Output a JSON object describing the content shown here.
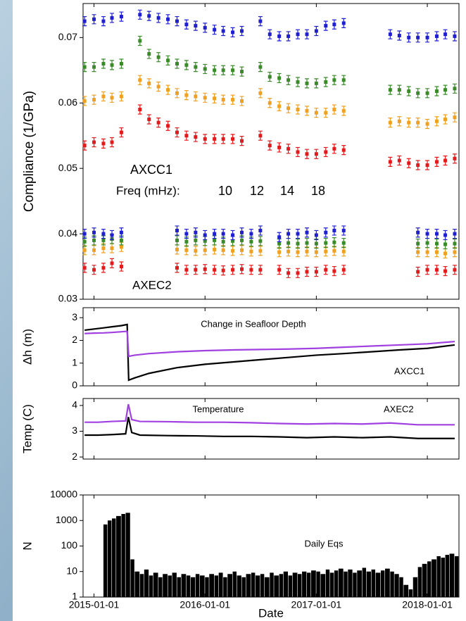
{
  "chart_data": [
    {
      "type": "errorbar",
      "ylabel": "Compliance (1/GPa)",
      "xlim": [
        "2014-11-26",
        "2018-04-15"
      ],
      "ylim": [
        0.03,
        0.0752
      ],
      "yticks": [
        0.03,
        0.04,
        0.05,
        0.06,
        0.07
      ],
      "x": [
        "2014-12-01",
        "2015-01-01",
        "2015-02-01",
        "2015-03-01",
        "2015-04-01",
        "2015-05-01",
        "2015-06-01",
        "2015-07-01",
        "2015-08-01",
        "2015-09-01",
        "2015-10-01",
        "2015-11-01",
        "2015-12-01",
        "2016-01-01",
        "2016-02-01",
        "2016-03-01",
        "2016-04-01",
        "2016-05-01",
        "2016-06-01",
        "2016-07-01",
        "2016-08-01",
        "2016-09-01",
        "2016-10-01",
        "2016-11-01",
        "2016-12-01",
        "2017-01-01",
        "2017-02-01",
        "2017-03-01",
        "2017-04-01",
        "2017-05-01",
        "2017-06-01",
        "2017-07-01",
        "2017-08-01",
        "2017-09-01",
        "2017-10-01",
        "2017-11-01",
        "2017-12-01",
        "2018-01-01",
        "2018-02-01",
        "2018-03-01",
        "2018-04-01"
      ],
      "error": 0.0007,
      "legend_title": "Freq (mHz):",
      "series": [
        {
          "name": "10",
          "color": "#e31a1c"
        },
        {
          "name": "12",
          "color": "#f0a020"
        },
        {
          "name": "14",
          "color": "#3a8a2a"
        },
        {
          "name": "18",
          "color": "#1f1fd0"
        }
      ],
      "sites": [
        {
          "name": "AXCC1",
          "color": "#000000",
          "values": [
            [
              0.0535,
              0.054,
              0.0538,
              0.054,
              0.0555,
              null,
              0.059,
              0.0575,
              0.057,
              0.0565,
              0.0555,
              0.055,
              0.0548,
              0.0545,
              0.0545,
              0.0545,
              0.0545,
              0.0542,
              null,
              0.055,
              0.0535,
              0.0532,
              0.053,
              0.0525,
              0.0522,
              0.0522,
              0.0525,
              0.053,
              0.0528,
              null,
              null,
              null,
              null,
              0.051,
              0.0512,
              0.0508,
              0.0505,
              0.0505,
              0.051,
              0.0512,
              0.0515
            ],
            [
              0.0603,
              0.0605,
              0.061,
              0.0608,
              0.061,
              null,
              0.0635,
              0.063,
              0.0625,
              0.062,
              0.0615,
              0.0612,
              0.061,
              0.0608,
              0.0607,
              0.0605,
              0.0605,
              0.0603,
              null,
              0.0615,
              0.06,
              0.0595,
              0.0592,
              0.059,
              0.0588,
              0.0585,
              0.0585,
              0.059,
              0.0588,
              null,
              null,
              null,
              null,
              0.057,
              0.0572,
              0.057,
              0.057,
              0.0568,
              0.0572,
              0.0575,
              0.0578
            ],
            [
              0.0655,
              0.0655,
              0.066,
              0.0658,
              0.066,
              null,
              0.0695,
              0.0675,
              0.067,
              0.0665,
              0.066,
              0.0658,
              0.0655,
              0.0652,
              0.065,
              0.065,
              0.065,
              0.0648,
              null,
              0.0655,
              0.064,
              0.0638,
              0.0635,
              0.0632,
              0.063,
              0.063,
              0.0632,
              0.0635,
              0.0635,
              null,
              null,
              null,
              null,
              0.062,
              0.062,
              0.0618,
              0.0615,
              0.0615,
              0.0618,
              0.062,
              0.0622
            ],
            [
              0.0725,
              0.0728,
              0.0725,
              0.073,
              0.0732,
              null,
              0.0735,
              0.0733,
              0.073,
              0.0728,
              0.0725,
              0.072,
              0.0718,
              0.0715,
              0.0712,
              0.071,
              0.0708,
              0.071,
              null,
              0.0725,
              0.0705,
              0.0702,
              0.0702,
              0.0705,
              0.0705,
              0.071,
              0.0718,
              0.072,
              0.0722,
              null,
              null,
              null,
              null,
              0.0705,
              0.0703,
              0.07,
              0.07,
              0.07,
              0.0702,
              0.0705,
              0.0702
            ]
          ]
        },
        {
          "name": "AXEC2",
          "color": "#a040e0",
          "values": [
            [
              0.0348,
              0.0345,
              0.0348,
              0.0355,
              0.035,
              null,
              null,
              null,
              null,
              null,
              0.0348,
              0.0345,
              0.0345,
              0.0346,
              0.0345,
              0.0344,
              0.0345,
              0.0346,
              0.0345,
              0.0345,
              null,
              0.0345,
              0.034,
              0.034,
              0.0342,
              0.0342,
              0.0345,
              0.0343,
              0.0345,
              null,
              null,
              null,
              null,
              null,
              null,
              null,
              0.0342,
              0.0345,
              0.0345,
              0.0343,
              0.0345
            ],
            [
              0.0375,
              0.0375,
              0.0378,
              0.0378,
              0.038,
              null,
              null,
              null,
              null,
              null,
              0.0376,
              0.0375,
              0.0374,
              0.0375,
              0.0376,
              0.0375,
              0.0374,
              0.0375,
              0.0373,
              0.0374,
              null,
              0.0372,
              0.0373,
              0.0372,
              0.0373,
              0.0372,
              0.0373,
              0.0374,
              0.0373,
              null,
              null,
              null,
              null,
              null,
              null,
              null,
              0.0372,
              0.0372,
              0.0372,
              0.037,
              0.0372
            ],
            [
              0.0388,
              0.039,
              0.039,
              0.0392,
              0.039,
              null,
              null,
              null,
              null,
              null,
              0.039,
              0.0388,
              0.039,
              0.0389,
              0.039,
              0.0388,
              0.0389,
              0.039,
              0.0388,
              0.0389,
              null,
              0.0385,
              0.0386,
              0.0385,
              0.0386,
              0.0385,
              0.0386,
              0.0387,
              0.0386,
              null,
              null,
              null,
              null,
              null,
              null,
              null,
              0.0385,
              0.0386,
              0.0385,
              0.0384,
              0.0385
            ],
            [
              0.04,
              0.0402,
              0.04,
              0.0398,
              0.0402,
              null,
              null,
              null,
              null,
              null,
              0.0405,
              0.04,
              0.0402,
              0.0398,
              0.04,
              0.04,
              0.0398,
              0.0402,
              0.04,
              0.0405,
              null,
              0.0395,
              0.04,
              0.04,
              0.0402,
              0.0398,
              0.0402,
              0.0405,
              0.0405,
              null,
              null,
              null,
              null,
              null,
              null,
              null,
              0.0402,
              0.04,
              0.04,
              0.0398,
              0.04
            ]
          ]
        }
      ]
    },
    {
      "type": "line",
      "title": "Change in Seafloor Depth",
      "ylabel": "Δh (m)",
      "xlim": [
        "2014-11-26",
        "2018-04-15"
      ],
      "ylim": [
        0,
        3.44
      ],
      "yticks": [
        0,
        1,
        2,
        3
      ],
      "x": [
        "2014-12-01",
        "2015-01-01",
        "2015-02-01",
        "2015-03-01",
        "2015-04-01",
        "2015-04-20",
        "2015-04-25",
        "2015-05-15",
        "2015-07-01",
        "2015-10-01",
        "2016-01-01",
        "2016-04-01",
        "2016-07-01",
        "2016-10-01",
        "2017-01-01",
        "2017-04-01",
        "2017-07-01",
        "2017-10-01",
        "2018-01-01",
        "2018-04-01"
      ],
      "series": [
        {
          "name": "AXCC1",
          "color": "#000000",
          "values": [
            2.45,
            2.5,
            2.55,
            2.6,
            2.65,
            2.7,
            0.25,
            0.35,
            0.55,
            0.8,
            0.95,
            1.05,
            1.15,
            1.25,
            1.35,
            1.42,
            1.5,
            1.58,
            1.65,
            1.8
          ]
        },
        {
          "color": "#a040e0",
          "values": [
            2.3,
            2.32,
            2.33,
            2.35,
            2.38,
            2.4,
            1.3,
            1.35,
            1.42,
            1.5,
            1.55,
            1.58,
            1.6,
            1.62,
            1.65,
            1.7,
            1.75,
            1.8,
            1.85,
            1.95
          ]
        }
      ]
    },
    {
      "type": "line",
      "title": "Temperature",
      "ylabel": "Temp (C)",
      "xlim": [
        "2014-11-26",
        "2018-04-15"
      ],
      "ylim": [
        1.92,
        4.27
      ],
      "yticks": [
        2,
        3,
        4
      ],
      "x": [
        "2014-12-01",
        "2015-01-15",
        "2015-03-01",
        "2015-04-15",
        "2015-04-24",
        "2015-05-05",
        "2015-06-01",
        "2015-09-01",
        "2015-12-01",
        "2016-03-01",
        "2016-06-01",
        "2016-09-01",
        "2016-12-01",
        "2017-03-01",
        "2017-06-01",
        "2017-09-01",
        "2017-12-01",
        "2018-04-01"
      ],
      "series": [
        {
          "color": "#000000",
          "values": [
            2.85,
            2.85,
            2.87,
            2.9,
            3.55,
            2.95,
            2.85,
            2.83,
            2.82,
            2.8,
            2.8,
            2.78,
            2.75,
            2.78,
            2.75,
            2.78,
            2.72,
            2.72
          ]
        },
        {
          "name": "AXEC2",
          "color": "#a040e0",
          "values": [
            3.35,
            3.35,
            3.38,
            3.4,
            4.05,
            3.45,
            3.38,
            3.37,
            3.35,
            3.35,
            3.33,
            3.3,
            3.28,
            3.3,
            3.28,
            3.32,
            3.25,
            3.25
          ]
        }
      ]
    },
    {
      "type": "bar",
      "title": "Daily Eqs",
      "ylabel": "N",
      "xlabel": "Date",
      "log": true,
      "color": "#000000",
      "xlim": [
        "2014-11-26",
        "2018-04-15"
      ],
      "xticks": [
        "2015-01-01",
        "2016-01-01",
        "2017-01-01",
        "2018-01-01"
      ],
      "ylim": [
        1,
        10000
      ],
      "yticks": [
        1,
        10,
        100,
        1000,
        10000
      ],
      "x": [
        "2015-02-01",
        "2015-02-15",
        "2015-03-01",
        "2015-03-15",
        "2015-04-01",
        "2015-04-15",
        "2015-05-01",
        "2015-05-15",
        "2015-06-01",
        "2015-06-15",
        "2015-07-01",
        "2015-07-15",
        "2015-08-01",
        "2015-08-15",
        "2015-09-01",
        "2015-09-15",
        "2015-10-01",
        "2015-10-15",
        "2015-11-01",
        "2015-11-15",
        "2015-12-01",
        "2015-12-15",
        "2016-01-01",
        "2016-01-15",
        "2016-02-01",
        "2016-02-15",
        "2016-03-01",
        "2016-03-15",
        "2016-04-01",
        "2016-04-15",
        "2016-05-01",
        "2016-05-15",
        "2016-06-01",
        "2016-06-15",
        "2016-07-01",
        "2016-07-15",
        "2016-08-01",
        "2016-08-15",
        "2016-09-01",
        "2016-09-15",
        "2016-10-01",
        "2016-10-15",
        "2016-11-01",
        "2016-11-15",
        "2016-12-01",
        "2016-12-15",
        "2017-01-01",
        "2017-01-15",
        "2017-02-01",
        "2017-02-15",
        "2017-03-01",
        "2017-03-15",
        "2017-04-01",
        "2017-04-15",
        "2017-05-01",
        "2017-05-15",
        "2017-06-01",
        "2017-06-15",
        "2017-07-01",
        "2017-07-15",
        "2017-08-01",
        "2017-08-15",
        "2017-09-01",
        "2017-09-15",
        "2017-10-01",
        "2017-10-15",
        "2017-11-01",
        "2017-11-15",
        "2017-12-01",
        "2017-12-15",
        "2018-01-01",
        "2018-01-15",
        "2018-02-01",
        "2018-02-15",
        "2018-03-01",
        "2018-03-15",
        "2018-04-01"
      ],
      "values": [
        700,
        1000,
        1200,
        1500,
        1800,
        2000,
        30,
        10,
        8,
        12,
        7,
        9,
        6,
        8,
        7,
        9,
        6,
        8,
        7,
        6,
        8,
        7,
        6,
        8,
        7,
        9,
        6,
        8,
        10,
        7,
        6,
        8,
        9,
        7,
        8,
        6,
        9,
        7,
        8,
        10,
        7,
        9,
        8,
        10,
        9,
        11,
        10,
        8,
        12,
        9,
        11,
        13,
        10,
        12,
        9,
        11,
        14,
        10,
        12,
        9,
        11,
        13,
        10,
        8,
        6,
        3,
        2,
        6,
        15,
        20,
        25,
        30,
        40,
        35,
        45,
        50,
        40
      ]
    }
  ]
}
